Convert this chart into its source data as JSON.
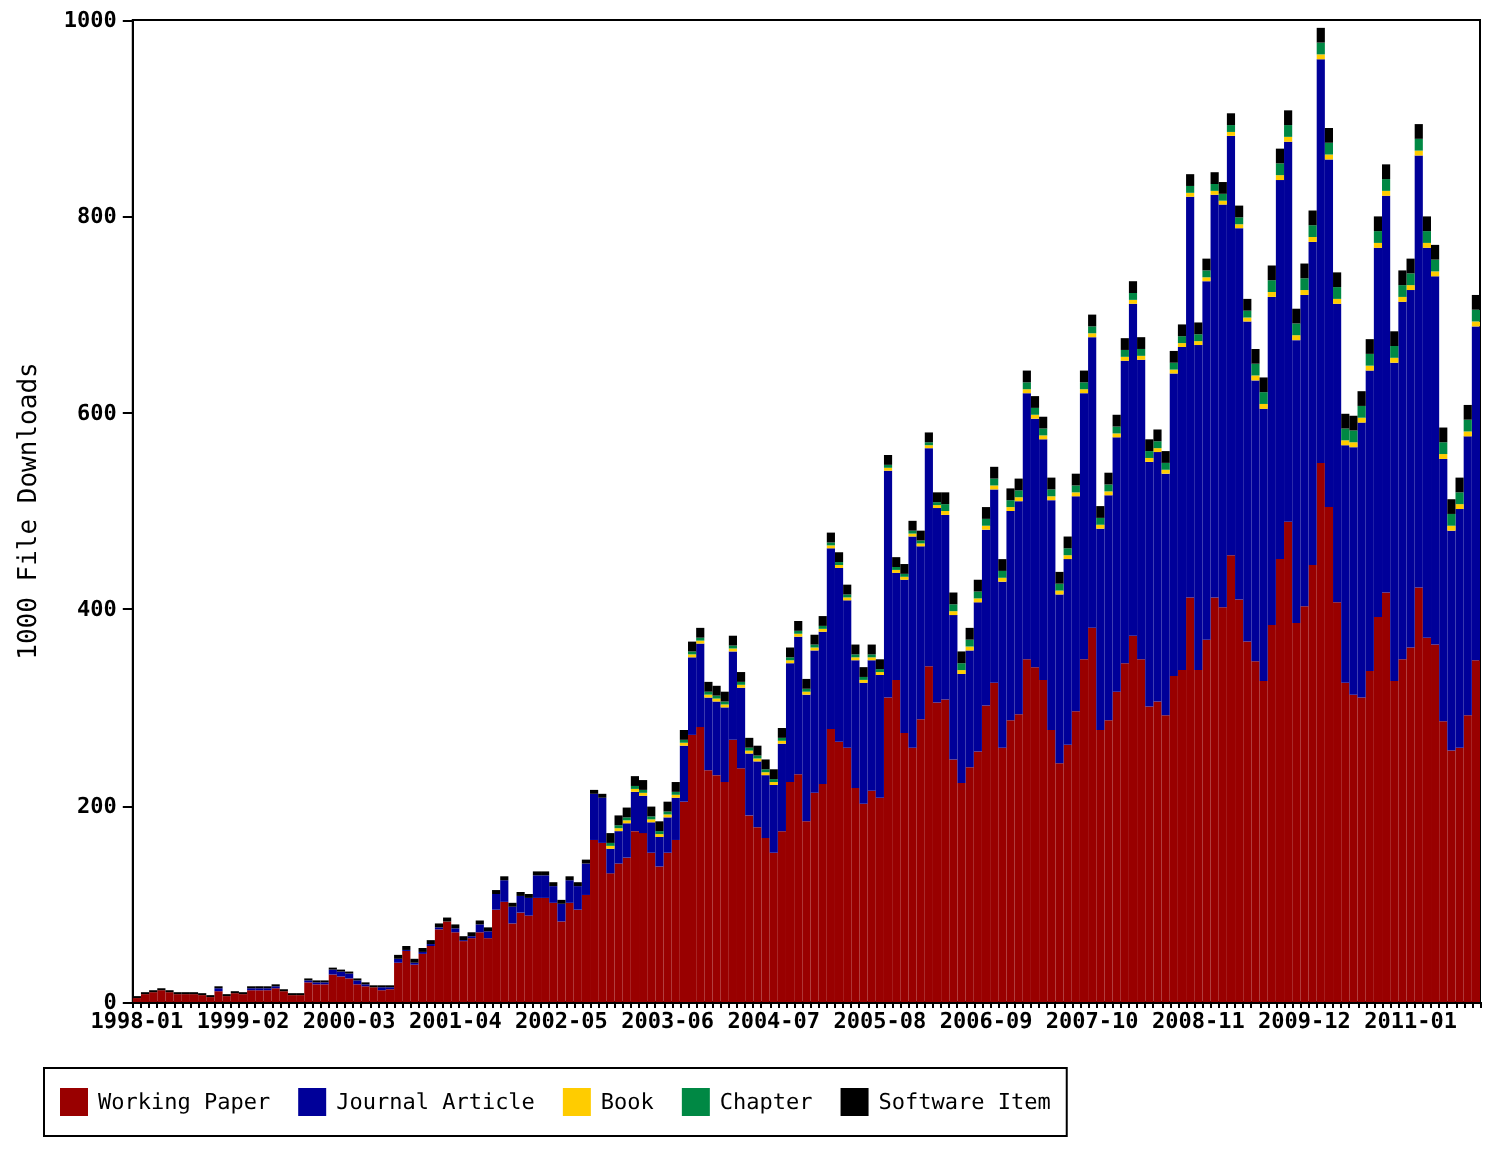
{
  "chart_data": {
    "type": "bar",
    "stacked": true,
    "ylabel": "1000 File Downloads",
    "ylim": [
      0,
      1000
    ],
    "yticks": [
      0,
      200,
      400,
      600,
      800,
      1000
    ],
    "grid": false,
    "legend": "bottom",
    "categories": [
      "1998-01",
      null,
      null,
      null,
      null,
      null,
      null,
      null,
      null,
      null,
      null,
      null,
      null,
      "1999-02",
      null,
      null,
      null,
      null,
      null,
      null,
      null,
      null,
      null,
      null,
      null,
      null,
      "2000-03",
      null,
      null,
      null,
      null,
      null,
      null,
      null,
      null,
      null,
      null,
      null,
      null,
      "2001-04",
      null,
      null,
      null,
      null,
      null,
      null,
      null,
      null,
      null,
      null,
      null,
      null,
      "2002-05",
      null,
      null,
      null,
      null,
      null,
      null,
      null,
      null,
      null,
      null,
      null,
      null,
      "2003-06",
      null,
      null,
      null,
      null,
      null,
      null,
      null,
      null,
      null,
      null,
      null,
      null,
      "2004-07",
      null,
      null,
      null,
      null,
      null,
      null,
      null,
      null,
      null,
      null,
      null,
      null,
      "2005-08",
      null,
      null,
      null,
      null,
      null,
      null,
      null,
      null,
      null,
      null,
      null,
      null,
      "2006-09",
      null,
      null,
      null,
      null,
      null,
      null,
      null,
      null,
      null,
      null,
      null,
      null,
      "2007-10",
      null,
      null,
      null,
      null,
      null,
      null,
      null,
      null,
      null,
      null,
      null,
      null,
      "2008-11",
      null,
      null,
      null,
      null,
      null,
      null,
      null,
      null,
      null,
      null,
      null,
      null,
      "2009-12",
      null,
      null,
      null,
      null,
      null,
      null,
      null,
      null,
      null,
      null,
      null,
      null,
      "2011-01",
      null,
      null,
      null,
      null,
      null,
      null,
      null,
      null
    ],
    "series": [
      {
        "name": "Working Paper",
        "color": "#990000",
        "values": [
          4,
          8,
          10,
          12,
          10,
          8,
          8,
          8,
          7,
          5,
          11,
          6,
          9,
          8,
          12,
          12,
          12,
          14,
          11,
          7,
          7,
          20,
          18,
          18,
          28,
          26,
          24,
          18,
          16,
          15,
          12,
          13,
          40,
          52,
          38,
          49,
          57,
          74,
          82,
          71,
          62,
          65,
          71,
          65,
          94,
          102,
          80,
          91,
          88,
          106,
          106,
          101,
          82,
          101,
          94,
          109,
          165,
          162,
          131,
          141,
          147,
          174,
          172,
          152,
          138,
          152,
          165,
          204,
          272,
          280,
          236,
          231,
          224,
          267,
          238,
          190,
          178,
          167,
          152,
          174,
          224,
          232,
          184,
          213,
          222,
          278,
          265,
          259,
          218,
          202,
          215,
          208,
          310,
          328,
          274,
          259,
          288,
          342,
          305,
          308,
          247,
          223,
          239,
          255,
          302,
          325,
          259,
          287,
          293,
          349,
          341,
          328,
          277,
          243,
          262,
          296,
          349,
          381,
          277,
          287,
          316,
          345,
          373,
          349,
          301,
          306,
          292,
          332,
          338,
          412,
          338,
          369,
          412,
          402,
          455,
          410,
          367,
          347,
          327,
          384,
          451,
          489,
          386,
          403,
          445,
          549,
          504,
          407,
          325,
          313,
          310,
          337,
          392,
          417,
          327,
          349,
          361,
          422,
          371,
          364,
          286,
          256,
          259,
          292,
          348
        ]
      },
      {
        "name": "Journal Article",
        "color": "#000099",
        "values": [
          0,
          0,
          0,
          0,
          0,
          0,
          0,
          0,
          0,
          0,
          3,
          0,
          0,
          0,
          2,
          2,
          2,
          2,
          0,
          0,
          0,
          2,
          2,
          2,
          5,
          5,
          5,
          4,
          2,
          0,
          3,
          2,
          4,
          1,
          2,
          2,
          2,
          2,
          0,
          4,
          1,
          2,
          8,
          7,
          16,
          22,
          17,
          17,
          18,
          23,
          23,
          17,
          18,
          23,
          24,
          32,
          47,
          46,
          25,
          33,
          35,
          40,
          38,
          31,
          30,
          36,
          43,
          57,
          79,
          85,
          74,
          75,
          76,
          90,
          82,
          63,
          67,
          64,
          69,
          89,
          121,
          140,
          129,
          145,
          155,
          184,
          177,
          150,
          130,
          123,
          133,
          125,
          231,
          109,
          156,
          215,
          176,
          222,
          198,
          188,
          147,
          111,
          119,
          152,
          179,
          197,
          169,
          213,
          217,
          271,
          253,
          245,
          234,
          172,
          189,
          219,
          271,
          296,
          205,
          229,
          259,
          308,
          338,
          305,
          249,
          254,
          246,
          308,
          329,
          408,
          331,
          365,
          410,
          410,
          427,
          378,
          326,
          286,
          277,
          334,
          386,
          387,
          288,
          317,
          329,
          411,
          354,
          304,
          242,
          252,
          280,
          306,
          376,
          404,
          324,
          364,
          364,
          440,
          397,
          375,
          267,
          224,
          243,
          284,
          340
        ]
      },
      {
        "name": "Book",
        "color": "#ffcc00",
        "values": [
          0,
          0,
          0,
          0,
          0,
          0,
          0,
          0,
          0,
          0,
          0,
          0,
          0,
          0,
          0,
          0,
          0,
          0,
          0,
          0,
          0,
          0,
          0,
          0,
          0,
          0,
          0,
          0,
          0,
          0,
          0,
          0,
          0,
          0,
          0,
          0,
          0,
          0,
          0,
          0,
          0,
          0,
          0,
          0,
          0,
          0,
          0,
          0,
          0,
          0,
          0,
          0,
          0,
          0,
          0,
          0,
          0,
          0,
          3,
          3,
          3,
          3,
          3,
          3,
          3,
          3,
          3,
          3,
          3,
          3,
          3,
          3,
          3,
          3,
          3,
          3,
          3,
          3,
          3,
          3,
          3,
          3,
          3,
          3,
          3,
          3,
          3,
          3,
          3,
          3,
          3,
          3,
          3,
          3,
          3,
          3,
          3,
          3,
          3,
          4,
          4,
          4,
          4,
          4,
          4,
          4,
          4,
          4,
          4,
          4,
          4,
          4,
          4,
          4,
          4,
          4,
          4,
          4,
          4,
          4,
          4,
          4,
          4,
          4,
          4,
          4,
          4,
          4,
          4,
          4,
          4,
          4,
          4,
          4,
          4,
          4,
          4,
          5,
          5,
          5,
          5,
          5,
          5,
          5,
          5,
          5,
          5,
          5,
          5,
          5,
          5,
          5,
          5,
          5,
          5,
          5,
          5,
          5,
          5,
          5,
          5,
          5,
          5,
          5,
          5
        ]
      },
      {
        "name": "Chapter",
        "color": "#008844",
        "values": [
          0,
          0,
          0,
          0,
          0,
          0,
          0,
          0,
          0,
          0,
          0,
          0,
          0,
          0,
          0,
          0,
          0,
          0,
          0,
          0,
          0,
          0,
          0,
          0,
          0,
          0,
          0,
          0,
          0,
          0,
          0,
          0,
          0,
          0,
          0,
          0,
          0,
          0,
          0,
          0,
          0,
          0,
          0,
          0,
          0,
          0,
          0,
          0,
          0,
          0,
          0,
          0,
          0,
          0,
          0,
          0,
          0,
          0,
          3,
          3,
          3,
          3,
          3,
          3,
          3,
          3,
          3,
          3,
          3,
          3,
          3,
          3,
          3,
          3,
          3,
          3,
          3,
          3,
          3,
          3,
          3,
          3,
          3,
          3,
          3,
          3,
          3,
          3,
          3,
          3,
          3,
          3,
          3,
          3,
          3,
          3,
          3,
          3,
          3,
          7,
          7,
          7,
          7,
          7,
          7,
          7,
          7,
          7,
          7,
          7,
          7,
          7,
          7,
          7,
          7,
          7,
          7,
          7,
          7,
          7,
          7,
          7,
          7,
          7,
          7,
          7,
          7,
          7,
          7,
          7,
          7,
          7,
          7,
          7,
          7,
          7,
          7,
          12,
          12,
          12,
          12,
          12,
          12,
          12,
          12,
          12,
          12,
          12,
          12,
          12,
          12,
          12,
          12,
          12,
          12,
          12,
          12,
          12,
          12,
          12,
          12,
          12,
          12,
          12,
          12
        ]
      },
      {
        "name": "Software Item",
        "color": "#000000",
        "values": [
          2,
          2,
          2,
          2,
          2,
          2,
          2,
          2,
          2,
          2,
          2,
          2,
          2,
          2,
          2,
          2,
          2,
          2,
          2,
          2,
          2,
          2,
          2,
          2,
          2,
          2,
          2,
          2,
          2,
          2,
          2,
          2,
          4,
          4,
          4,
          4,
          4,
          4,
          4,
          4,
          4,
          4,
          4,
          4,
          4,
          4,
          4,
          4,
          4,
          4,
          4,
          4,
          4,
          4,
          4,
          4,
          4,
          4,
          10,
          10,
          10,
          10,
          10,
          10,
          10,
          10,
          10,
          10,
          10,
          10,
          10,
          10,
          10,
          10,
          10,
          10,
          10,
          10,
          10,
          10,
          10,
          10,
          10,
          10,
          10,
          10,
          10,
          10,
          10,
          10,
          10,
          10,
          10,
          10,
          10,
          10,
          10,
          10,
          10,
          12,
          12,
          12,
          12,
          12,
          12,
          12,
          12,
          12,
          12,
          12,
          12,
          12,
          12,
          12,
          12,
          12,
          12,
          12,
          12,
          12,
          12,
          12,
          12,
          12,
          12,
          12,
          12,
          12,
          12,
          12,
          12,
          12,
          12,
          12,
          12,
          12,
          12,
          15,
          15,
          15,
          15,
          15,
          15,
          15,
          15,
          15,
          15,
          15,
          15,
          15,
          15,
          15,
          15,
          15,
          15,
          15,
          15,
          15,
          15,
          15,
          15,
          15,
          15,
          15,
          15
        ]
      }
    ]
  }
}
